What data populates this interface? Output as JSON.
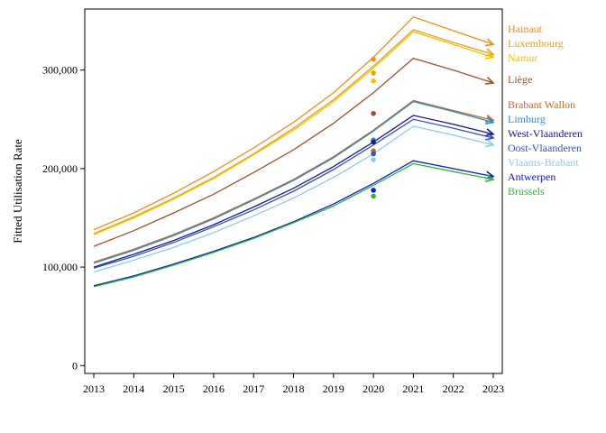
{
  "chart_data": {
    "type": "line",
    "ylabel": "Fitted Utilisation Rate",
    "x": [
      2013,
      2014,
      2015,
      2016,
      2017,
      2018,
      2019,
      2020,
      2021,
      2022,
      2023
    ],
    "xlim": [
      2013,
      2023
    ],
    "ylim": [
      -8000,
      362000
    ],
    "yticks": [
      0,
      100000,
      200000,
      300000
    ],
    "ytick_labels": [
      "0",
      "100,000",
      "200,000",
      "300,000"
    ],
    "xtick_labels": [
      "2013",
      "2014",
      "2015",
      "2016",
      "2017",
      "2018",
      "2019",
      "2020",
      "2021",
      "2022",
      "2023"
    ],
    "grid": false,
    "legend_placement": "right",
    "series": [
      {
        "name": "Hainaut",
        "color": "#f28c1e",
        "values": [
          138000,
          155000,
          175000,
          197000,
          221000,
          247000,
          277000,
          313000,
          354000,
          340000,
          326000
        ],
        "observed_2020": 311000
      },
      {
        "name": "Luxembourg",
        "color": "#e8a317",
        "values": [
          134000,
          151000,
          170000,
          191000,
          215000,
          241000,
          270000,
          304000,
          341000,
          328000,
          316000
        ],
        "observed_2020": 297000
      },
      {
        "name": "Namur",
        "color": "#f2c200",
        "values": [
          133000,
          150000,
          169000,
          190000,
          214000,
          239000,
          268000,
          302000,
          339000,
          326000,
          313000
        ],
        "observed_2020": 289000
      },
      {
        "name": "Liège",
        "color": "#a0522d",
        "values": [
          121000,
          137000,
          155000,
          174000,
          196000,
          219000,
          246000,
          277000,
          312000,
          300000,
          287000
        ],
        "observed_2020": 256000
      },
      {
        "name": "Brabant Wallon",
        "color": "#c46a2a",
        "values": [
          105000,
          118000,
          133000,
          150000,
          169000,
          189000,
          212000,
          239000,
          269000,
          259000,
          249000
        ],
        "observed_2020": 218000
      },
      {
        "name": "Limburg",
        "color": "#2b8fcf",
        "values": [
          104000,
          117000,
          132000,
          149000,
          168000,
          188000,
          211000,
          238000,
          268000,
          258000,
          247000
        ],
        "observed_2020": 229000
      },
      {
        "name": "West-Vlaanderen",
        "color": "#1a1a8c",
        "values": [
          100000,
          113000,
          127000,
          143000,
          161000,
          180000,
          202000,
          227000,
          254000,
          245000,
          235000
        ],
        "observed_2020": 227000
      },
      {
        "name": "Oost-Vlaanderen",
        "color": "#3355bb",
        "values": [
          99000,
          111000,
          125000,
          141000,
          158000,
          177000,
          199000,
          224000,
          250000,
          241000,
          231000
        ],
        "observed_2020": 215000
      },
      {
        "name": "Vlaams-Brabant",
        "color": "#8ec9ee",
        "values": [
          95000,
          107000,
          120000,
          135000,
          152000,
          170000,
          191000,
          215000,
          243000,
          234000,
          224000
        ],
        "observed_2020": 209000
      },
      {
        "name": "Antwerpen",
        "color": "#0a1fbf",
        "values": [
          81000,
          91000,
          103000,
          116000,
          130000,
          146000,
          164000,
          185000,
          208000,
          200000,
          192000
        ],
        "observed_2020": 178000
      },
      {
        "name": "Brussels",
        "color": "#2fb52f",
        "values": [
          80000,
          90000,
          102000,
          115000,
          129000,
          145000,
          162000,
          183000,
          205000,
          197000,
          189000
        ],
        "observed_2020": 172000
      }
    ],
    "legend_label_colors": [
      "#f28c1e",
      "#e8a317",
      "#f2c200",
      "#a0522d",
      "#c46a2a",
      "#2b8fcf",
      "#1a1a8c",
      "#3355bb",
      "#8ec9ee",
      "#0a1fbf",
      "#2fb52f"
    ]
  }
}
